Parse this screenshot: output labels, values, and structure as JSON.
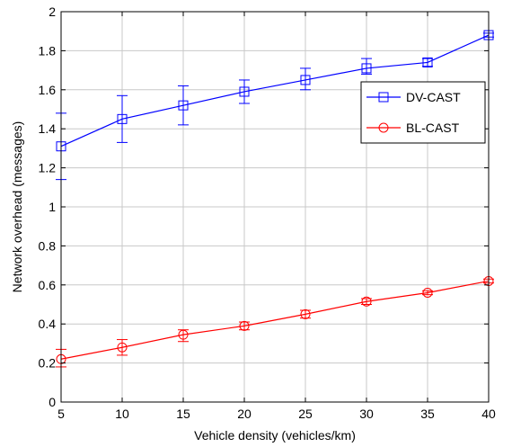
{
  "chart_data": {
    "type": "line",
    "xlabel": "Vehicle density (vehicles/km)",
    "ylabel": "Network overhead (messages)",
    "xlim": [
      5,
      40
    ],
    "ylim": [
      0,
      2
    ],
    "x_ticks": [
      "5",
      "10",
      "15",
      "20",
      "25",
      "30",
      "35",
      "40"
    ],
    "y_ticks": [
      "0",
      "0.2",
      "0.4",
      "0.6",
      "0.8",
      "1",
      "1.2",
      "1.4",
      "1.6",
      "1.8",
      "2"
    ],
    "grid": true,
    "legend_position": "upper-right",
    "x": [
      5,
      10,
      15,
      20,
      25,
      30,
      35,
      40
    ],
    "series": [
      {
        "name": "DV-CAST",
        "color": "#0000ff",
        "marker": "square",
        "values": [
          1.31,
          1.45,
          1.52,
          1.59,
          1.65,
          1.71,
          1.74,
          1.88
        ],
        "err_low": [
          1.14,
          1.33,
          1.42,
          1.53,
          1.6,
          1.68,
          1.72,
          1.87
        ],
        "err_high": [
          1.48,
          1.57,
          1.62,
          1.65,
          1.71,
          1.76,
          1.76,
          1.89
        ]
      },
      {
        "name": "BL-CAST",
        "color": "#ff0000",
        "marker": "circle",
        "values": [
          0.22,
          0.28,
          0.345,
          0.39,
          0.45,
          0.515,
          0.56,
          0.62
        ],
        "err_low": [
          0.18,
          0.24,
          0.31,
          0.37,
          0.43,
          0.5,
          0.55,
          0.61
        ],
        "err_high": [
          0.27,
          0.32,
          0.37,
          0.41,
          0.47,
          0.53,
          0.57,
          0.63
        ]
      }
    ]
  }
}
